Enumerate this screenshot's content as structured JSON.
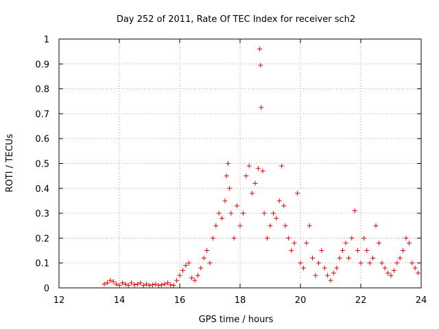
{
  "chart_data": {
    "type": "scatter",
    "title": "Day 252 of 2011, Rate Of TEC Index for receiver sch2",
    "xlabel": "GPS time / hours",
    "ylabel": "ROTI / TECUs",
    "xlim": [
      12,
      24
    ],
    "ylim": [
      0,
      1
    ],
    "xticks": [
      12,
      14,
      16,
      18,
      20,
      22,
      24
    ],
    "yticks": [
      0,
      0.1,
      0.2,
      0.3,
      0.4,
      0.5,
      0.6,
      0.7,
      0.8,
      0.9,
      1
    ],
    "grid": true,
    "marker": "+",
    "color": "#e00000",
    "series": [
      {
        "points": [
          [
            13.5,
            0.015
          ],
          [
            13.6,
            0.02
          ],
          [
            13.7,
            0.03
          ],
          [
            13.8,
            0.025
          ],
          [
            13.9,
            0.015
          ],
          [
            14.0,
            0.01
          ],
          [
            14.1,
            0.02
          ],
          [
            14.2,
            0.015
          ],
          [
            14.3,
            0.01
          ],
          [
            14.4,
            0.02
          ],
          [
            14.5,
            0.012
          ],
          [
            14.6,
            0.015
          ],
          [
            14.7,
            0.02
          ],
          [
            14.8,
            0.01
          ],
          [
            14.9,
            0.015
          ],
          [
            15.0,
            0.01
          ],
          [
            15.1,
            0.012
          ],
          [
            15.2,
            0.015
          ],
          [
            15.3,
            0.01
          ],
          [
            15.4,
            0.012
          ],
          [
            15.5,
            0.015
          ],
          [
            15.6,
            0.02
          ],
          [
            15.7,
            0.012
          ],
          [
            15.8,
            0.01
          ],
          [
            15.9,
            0.03
          ],
          [
            16.0,
            0.05
          ],
          [
            16.1,
            0.07
          ],
          [
            16.2,
            0.09
          ],
          [
            16.3,
            0.1
          ],
          [
            16.4,
            0.04
          ],
          [
            16.5,
            0.03
          ],
          [
            16.6,
            0.05
          ],
          [
            16.7,
            0.08
          ],
          [
            16.8,
            0.12
          ],
          [
            16.9,
            0.15
          ],
          [
            17.0,
            0.1
          ],
          [
            17.1,
            0.2
          ],
          [
            17.2,
            0.25
          ],
          [
            17.3,
            0.3
          ],
          [
            17.4,
            0.28
          ],
          [
            17.5,
            0.35
          ],
          [
            17.55,
            0.45
          ],
          [
            17.6,
            0.5
          ],
          [
            17.65,
            0.4
          ],
          [
            17.7,
            0.3
          ],
          [
            17.8,
            0.2
          ],
          [
            17.9,
            0.33
          ],
          [
            18.0,
            0.25
          ],
          [
            18.1,
            0.3
          ],
          [
            18.2,
            0.45
          ],
          [
            18.3,
            0.49
          ],
          [
            18.4,
            0.38
          ],
          [
            18.5,
            0.42
          ],
          [
            18.6,
            0.48
          ],
          [
            18.65,
            0.96
          ],
          [
            18.68,
            0.895
          ],
          [
            18.7,
            0.725
          ],
          [
            18.75,
            0.47
          ],
          [
            18.8,
            0.3
          ],
          [
            18.9,
            0.2
          ],
          [
            19.0,
            0.25
          ],
          [
            19.1,
            0.3
          ],
          [
            19.2,
            0.28
          ],
          [
            19.3,
            0.35
          ],
          [
            19.38,
            0.49
          ],
          [
            19.45,
            0.33
          ],
          [
            19.5,
            0.25
          ],
          [
            19.6,
            0.2
          ],
          [
            19.7,
            0.15
          ],
          [
            19.8,
            0.18
          ],
          [
            19.9,
            0.38
          ],
          [
            20.0,
            0.1
          ],
          [
            20.1,
            0.08
          ],
          [
            20.2,
            0.18
          ],
          [
            20.3,
            0.25
          ],
          [
            20.4,
            0.12
          ],
          [
            20.5,
            0.05
          ],
          [
            20.6,
            0.1
          ],
          [
            20.7,
            0.15
          ],
          [
            20.8,
            0.08
          ],
          [
            20.9,
            0.05
          ],
          [
            21.0,
            0.03
          ],
          [
            21.1,
            0.06
          ],
          [
            21.2,
            0.08
          ],
          [
            21.3,
            0.12
          ],
          [
            21.4,
            0.15
          ],
          [
            21.5,
            0.18
          ],
          [
            21.6,
            0.12
          ],
          [
            21.7,
            0.2
          ],
          [
            21.8,
            0.31
          ],
          [
            21.9,
            0.15
          ],
          [
            22.0,
            0.1
          ],
          [
            22.1,
            0.2
          ],
          [
            22.2,
            0.15
          ],
          [
            22.3,
            0.1
          ],
          [
            22.4,
            0.12
          ],
          [
            22.5,
            0.25
          ],
          [
            22.6,
            0.18
          ],
          [
            22.7,
            0.1
          ],
          [
            22.8,
            0.08
          ],
          [
            22.9,
            0.06
          ],
          [
            23.0,
            0.05
          ],
          [
            23.1,
            0.07
          ],
          [
            23.2,
            0.1
          ],
          [
            23.3,
            0.12
          ],
          [
            23.4,
            0.15
          ],
          [
            23.5,
            0.2
          ],
          [
            23.6,
            0.18
          ],
          [
            23.7,
            0.1
          ],
          [
            23.8,
            0.08
          ],
          [
            23.9,
            0.06
          ]
        ]
      }
    ]
  }
}
